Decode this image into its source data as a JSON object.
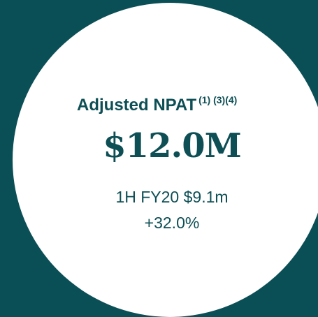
{
  "metric": {
    "title": "Adjusted NPAT",
    "footnotes": "(1) (3)(4)",
    "value": "$12.0M",
    "comparison": "1H FY20 $9.1m",
    "change": "+32.0%"
  }
}
